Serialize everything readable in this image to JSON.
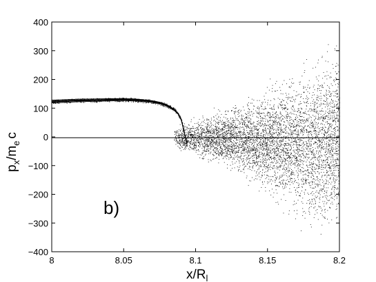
{
  "chart_data": {
    "type": "scatter",
    "title": "",
    "xlabel": {
      "main": "x/R",
      "sub": "l"
    },
    "ylabel": {
      "pre": "p",
      "sub1": "x",
      "mid": "/m",
      "sub2": "e",
      "post": "c"
    },
    "xlim": [
      8.0,
      8.2
    ],
    "ylim": [
      -400,
      400
    ],
    "xticks": [
      8.0,
      8.05,
      8.1,
      8.15,
      8.2
    ],
    "xtick_labels": [
      "8",
      "8.05",
      "8.1",
      "8.15",
      "8.2"
    ],
    "yticks": [
      400,
      300,
      200,
      100,
      0,
      -100,
      -200,
      -300,
      -400
    ],
    "ytick_labels": [
      "400",
      "300",
      "200",
      "100",
      "0",
      "−100",
      "−200",
      "−300",
      "−400"
    ],
    "annotation": "b)",
    "grid": false,
    "marker_color": "#000000",
    "series": [
      {
        "role": "beam band",
        "x": [
          8.0,
          8.01,
          8.02,
          8.03,
          8.04,
          8.05,
          8.06,
          8.07,
          8.075,
          8.08,
          8.085,
          8.088,
          8.09,
          8.092,
          8.094
        ],
        "y": [
          123,
          125,
          127,
          128,
          129,
          130,
          128,
          123,
          118,
          110,
          95,
          80,
          60,
          20,
          -25
        ]
      },
      {
        "role": "zero line",
        "x": [
          8.0,
          8.2
        ],
        "y": [
          -3,
          -3
        ]
      },
      {
        "role": "scattered particles",
        "x_range": [
          8.085,
          8.2
        ],
        "y_envelope_x": [
          8.085,
          8.1,
          8.12,
          8.14,
          8.16,
          8.18,
          8.2
        ],
        "y_envelope_min": [
          -40,
          -90,
          -130,
          -190,
          -280,
          -380,
          -400
        ],
        "y_envelope_max": [
          40,
          80,
          120,
          170,
          240,
          320,
          400
        ]
      }
    ]
  }
}
